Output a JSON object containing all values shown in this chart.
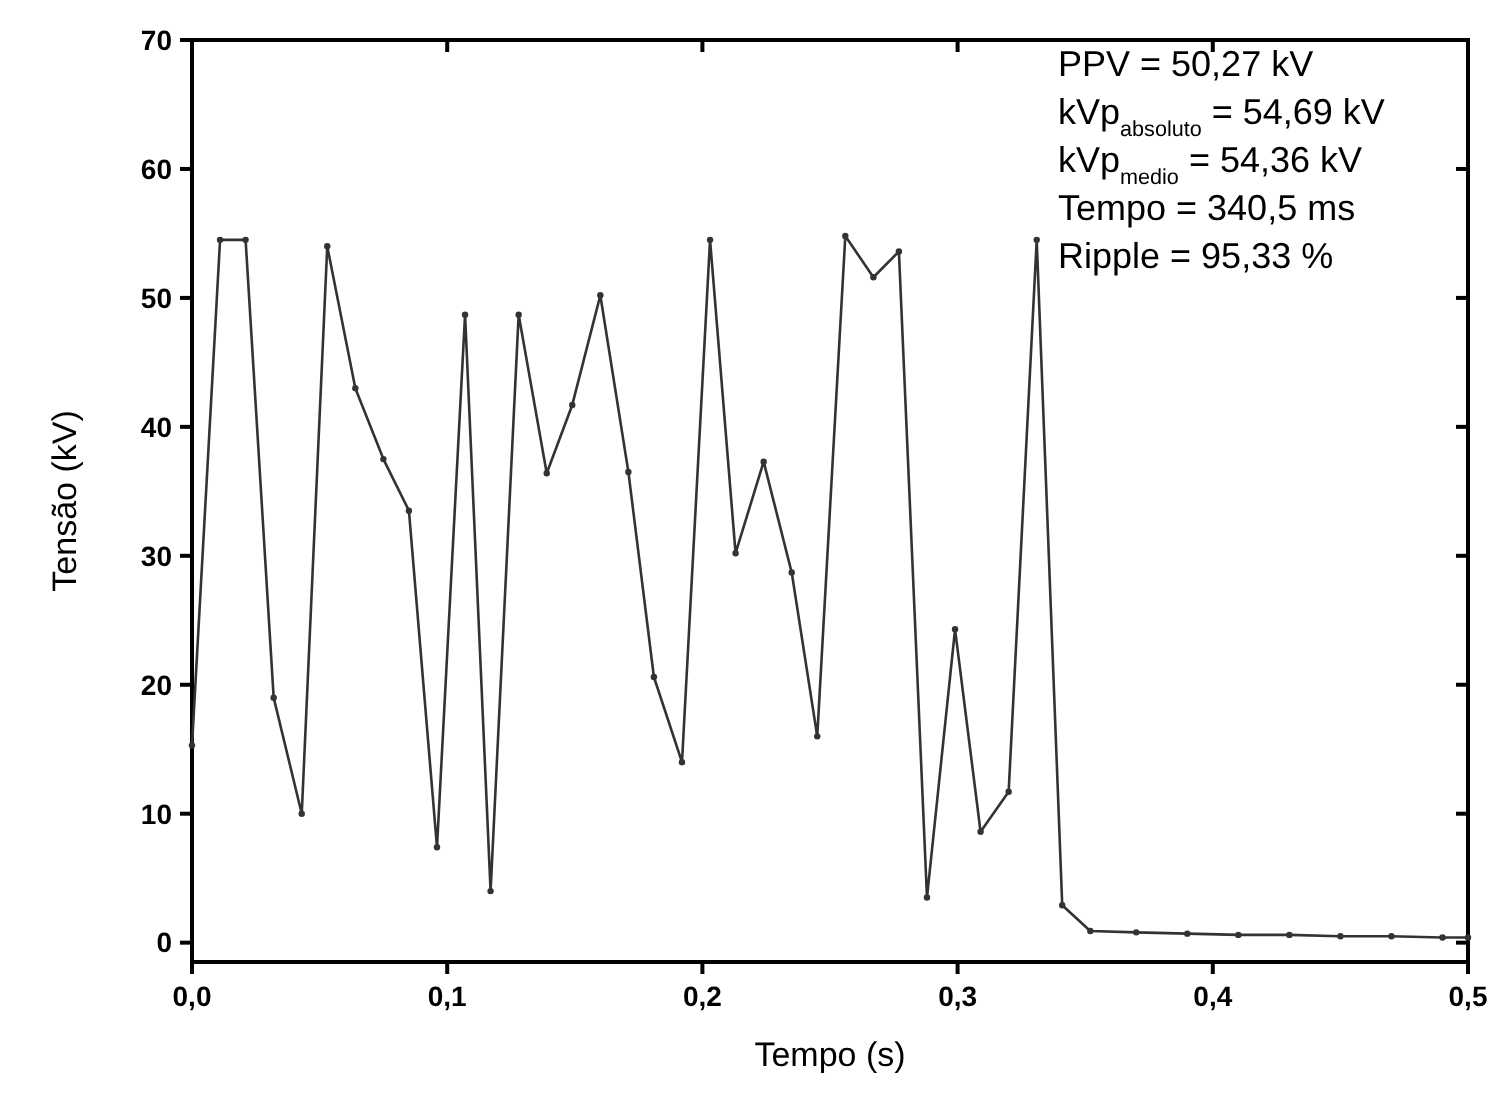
{
  "chart_data": {
    "type": "line",
    "xlabel": "Tempo (s)",
    "ylabel": "Tensão (kV)",
    "xlim": [
      0,
      0.5
    ],
    "xticks": [
      {
        "value": 0,
        "label": "0,0"
      },
      {
        "value": 0.1,
        "label": "0,1"
      },
      {
        "value": 0.2,
        "label": "0,2"
      },
      {
        "value": 0.3,
        "label": "0,3"
      },
      {
        "value": 0.4,
        "label": "0,4"
      },
      {
        "value": 0.5,
        "label": "0,5"
      }
    ],
    "ylim": [
      -1.5,
      70
    ],
    "yticks": [
      0,
      10,
      20,
      30,
      40,
      50,
      60,
      70
    ],
    "grid": false,
    "marker": "circle",
    "line_style": "solid",
    "annotations": [
      "PPV = 50,27 kV",
      "kVp$_{absoluto}$ = 54,69 kV",
      "kVp$_{medio}$ = 54,36 kV",
      "Tempo = 340,5 ms",
      "Ripple = 95,33 %"
    ],
    "series": [
      {
        "color": "#333333",
        "x": [
          0,
          0.011,
          0.021,
          0.032,
          0.043,
          0.053,
          0.064,
          0.075,
          0.085,
          0.096,
          0.107,
          0.117,
          0.128,
          0.139,
          0.149,
          0.16,
          0.171,
          0.181,
          0.192,
          0.203,
          0.213,
          0.224,
          0.235,
          0.245,
          0.256,
          0.267,
          0.277,
          0.288,
          0.299,
          0.309,
          0.32,
          0.331,
          0.341,
          0.352,
          0.37,
          0.39,
          0.41,
          0.43,
          0.45,
          0.47,
          0.49,
          0.5
        ],
        "values": [
          15.3,
          54.5,
          54.5,
          19,
          10,
          54,
          43,
          37.5,
          33.5,
          7.4,
          48.7,
          4,
          48.7,
          36.4,
          41.7,
          50.2,
          36.5,
          20.6,
          14,
          54.5,
          30.2,
          37.3,
          28.7,
          16,
          54.8,
          51.6,
          53.6,
          3.5,
          24.3,
          8.6,
          11.7,
          54.5,
          2.9,
          0.9,
          0.8,
          0.7,
          0.6,
          0.6,
          0.5,
          0.5,
          0.4,
          0.4
        ]
      }
    ]
  }
}
